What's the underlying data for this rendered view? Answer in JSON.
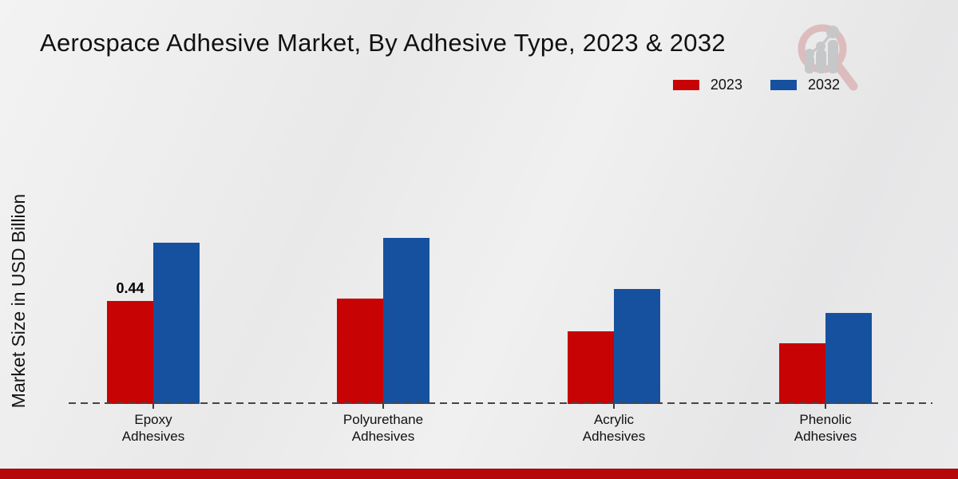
{
  "header": {
    "title": "Aerospace Adhesive Market, By Adhesive Type, 2023 & 2032"
  },
  "axes": {
    "y_label": "Market Size in USD Billion"
  },
  "legend": {
    "items": [
      {
        "label": "2023",
        "color": "#c70303"
      },
      {
        "label": "2032",
        "color": "#16519f"
      }
    ]
  },
  "watermark": {
    "name": "magnifier-bar-chart-logo",
    "ring_color": "#ddbcbe",
    "bar_color": "#c5c7c9"
  },
  "footer": {
    "accent_color": "#b60808"
  },
  "chart_data": {
    "type": "bar",
    "title": "Aerospace Adhesive Market, By Adhesive Type, 2023 & 2032",
    "xlabel": "",
    "ylabel": "Market Size in USD Billion",
    "categories": [
      "Epoxy Adhesives",
      "Polyurethane Adhesives",
      "Acrylic Adhesives",
      "Phenolic Adhesives"
    ],
    "series": [
      {
        "name": "2023",
        "color": "#c70303",
        "values": [
          0.44,
          0.45,
          0.31,
          0.26
        ]
      },
      {
        "name": "2032",
        "color": "#16519f",
        "values": [
          0.69,
          0.71,
          0.49,
          0.39
        ]
      }
    ],
    "ylim": [
      0,
      0.78
    ],
    "grid": false,
    "legend_position": "top-right",
    "baseline_style": "dashed",
    "data_labels": [
      {
        "series": "2023",
        "category": "Epoxy Adhesives",
        "text": "0.44"
      }
    ]
  }
}
